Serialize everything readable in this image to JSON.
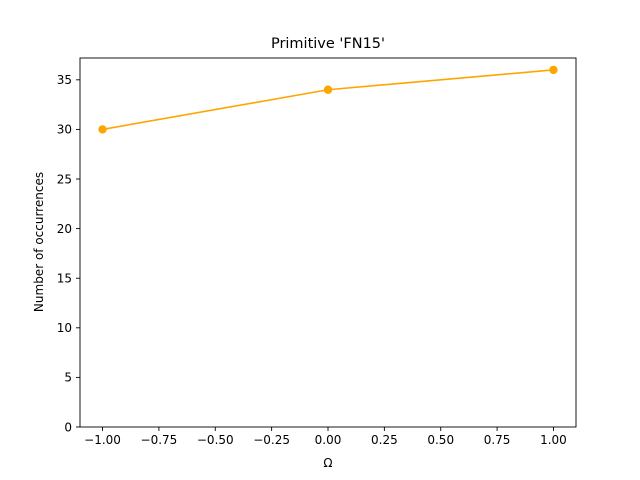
{
  "chart_data": {
    "type": "line",
    "title": "Primitive 'FN15'",
    "xlabel": "Ω",
    "ylabel": "Number of occurrences",
    "x": [
      -1.0,
      0.0,
      1.0
    ],
    "series": [
      {
        "values": [
          30,
          34,
          36
        ],
        "color": "#ffa500",
        "marker": "circle"
      }
    ],
    "xlim": [
      -1.1,
      1.1
    ],
    "ylim": [
      0,
      37.2
    ],
    "xticks": [
      -1.0,
      -0.75,
      -0.5,
      -0.25,
      0.0,
      0.25,
      0.5,
      0.75,
      1.0
    ],
    "xtick_labels": [
      "−1.00",
      "−0.75",
      "−0.50",
      "−0.25",
      "0.00",
      "0.25",
      "0.50",
      "0.75",
      "1.00"
    ],
    "yticks": [
      0,
      5,
      10,
      15,
      20,
      25,
      30,
      35
    ],
    "ytick_labels": [
      "0",
      "5",
      "10",
      "15",
      "20",
      "25",
      "30",
      "35"
    ],
    "grid": false,
    "legend": "none"
  }
}
